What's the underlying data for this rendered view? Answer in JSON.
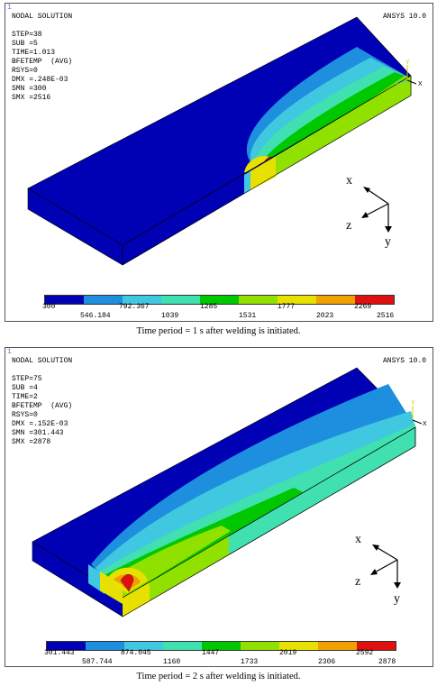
{
  "figures": [
    {
      "corner_index": "1",
      "title": "NODAL SOLUTION",
      "software": "ANSYS 10.0",
      "info_lines": [
        "STEP=38",
        "SUB =5",
        "TIME=1.013",
        "BFETEMP  (AVG)",
        "RSYS=0",
        "DMX =.248E-03",
        "SMN =300",
        "SMX =2516"
      ],
      "legend_top": [
        "300",
        "792.367",
        "1285",
        "1777",
        "2269"
      ],
      "legend_bottom": [
        "546.184",
        "1039",
        "1531",
        "2023",
        "2516"
      ],
      "small_axis": {
        "y": "Y",
        "z": "Z",
        "x": "X"
      },
      "triad": {
        "x": "x",
        "z": "z",
        "y": "y"
      },
      "caption": "Time period = 1 s after welding is initiated."
    },
    {
      "corner_index": "1",
      "title": "NODAL SOLUTION",
      "software": "ANSYS 10.0",
      "info_lines": [
        "STEP=75",
        "SUB =4",
        "TIME=2",
        "BFETEMP  (AVG)",
        "RSYS=0",
        "DMX =.152E-03",
        "SMN =301.443",
        "SMX =2878"
      ],
      "legend_top": [
        "301.443",
        "874.045",
        "1447",
        "2019",
        "2592"
      ],
      "legend_bottom": [
        "587.744",
        "1160",
        "1733",
        "2306",
        "2878"
      ],
      "small_axis": {
        "y": "Y",
        "z": "Z",
        "x": "X"
      },
      "triad": {
        "x": "x",
        "z": "z",
        "y": "y"
      },
      "caption": "Time period = 2 s after welding is initiated."
    }
  ],
  "legend_colors": [
    "#0000b4",
    "#1e8ede",
    "#40c8e0",
    "#40e0b0",
    "#00c800",
    "#90e000",
    "#e8e000",
    "#f0a000",
    "#e01010"
  ]
}
